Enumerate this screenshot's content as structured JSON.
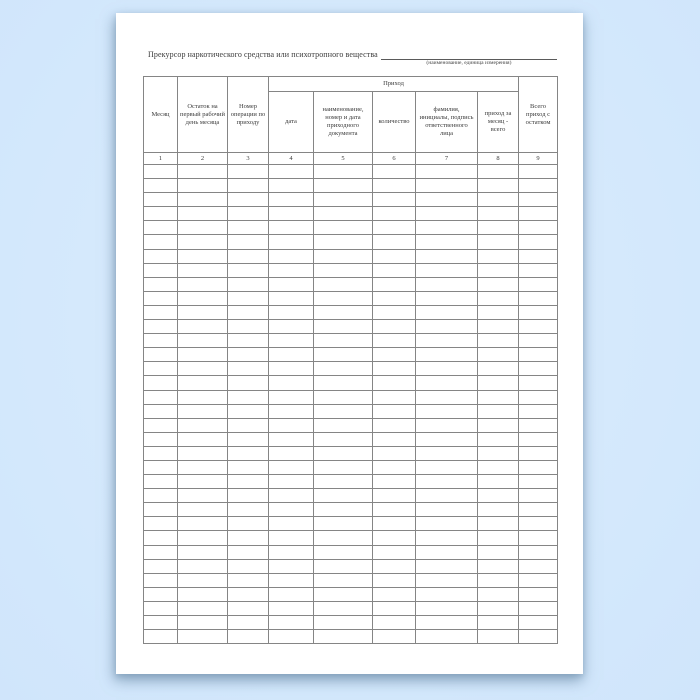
{
  "document": {
    "title": "Прекурсор наркотического средства или психотропного вещества",
    "blank_line_note": "(наименование, единица измерения)"
  },
  "table": {
    "group_header": "Приход",
    "columns": [
      {
        "number": "1",
        "label": "Месяц"
      },
      {
        "number": "2",
        "label": "Остаток на первый рабочий день месяца"
      },
      {
        "number": "3",
        "label": "Номер операции по приходу"
      },
      {
        "number": "4",
        "label": "дата"
      },
      {
        "number": "5",
        "label": "наименование, номер и дата приходного документа"
      },
      {
        "number": "6",
        "label": "количество"
      },
      {
        "number": "7",
        "label": "фамилия, инициалы, подпись ответственного лица"
      },
      {
        "number": "8",
        "label": "приход за месяц - всего"
      },
      {
        "number": "9",
        "label": "Всего приход с остатком"
      }
    ],
    "empty_row_count": 34
  }
}
